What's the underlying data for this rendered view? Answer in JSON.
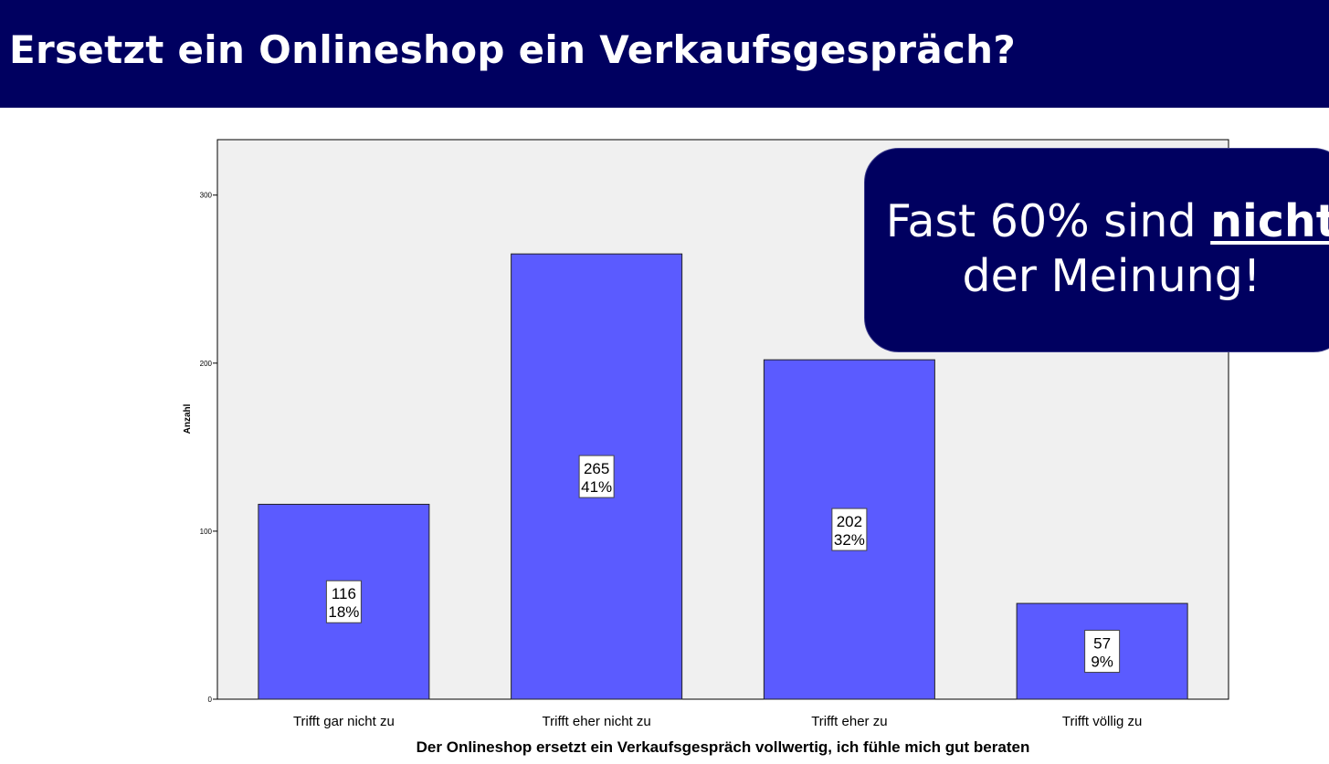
{
  "header": {
    "title": "Ersetzt ein Onlineshop ein Verkaufsgespräch?"
  },
  "callout": {
    "prefix": "Fast 60% sind ",
    "emphasis": "nicht",
    "line2": "der Meinung!"
  },
  "colors": {
    "header_bg": "#000060",
    "bar": "#5b5bff",
    "plot_bg": "#f0f0f0"
  },
  "chart_data": {
    "type": "bar",
    "categories": [
      "Trifft gar nicht zu",
      "Trifft eher nicht zu",
      "Trifft eher zu",
      "Trifft völlig zu"
    ],
    "values": [
      116,
      265,
      202,
      57
    ],
    "percent_labels": [
      "18%",
      "41%",
      "32%",
      "9%"
    ],
    "xlabel": "Der Onlineshop ersetzt ein Verkaufsgespräch vollwertig, ich fühle mich gut beraten",
    "ylabel": "Anzahl",
    "yticks": [
      0,
      100,
      200,
      300
    ],
    "ylim": [
      0,
      333
    ],
    "grid": false,
    "legend": "none"
  }
}
